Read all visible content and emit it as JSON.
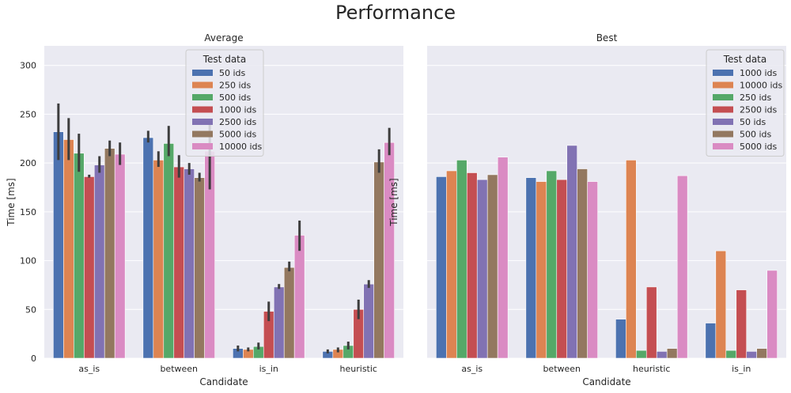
{
  "figure": {
    "title": "Performance"
  },
  "chart_data": [
    {
      "type": "bar",
      "title": "Average",
      "xlabel": "Candidate",
      "ylabel": "Time [ms]",
      "ylim": [
        0,
        320
      ],
      "yticks": [
        0,
        50,
        100,
        150,
        200,
        250,
        300
      ],
      "grid": true,
      "legend": {
        "title": "Test data",
        "placement": "top-center"
      },
      "categories": [
        "as_is",
        "between",
        "is_in",
        "heuristic"
      ],
      "series": [
        {
          "name": "50 ids",
          "color": "#4c72b0",
          "values": [
            232,
            226,
            10,
            7
          ],
          "err_low": [
            203,
            221,
            7,
            5
          ],
          "err_high": [
            261,
            233,
            13,
            9
          ]
        },
        {
          "name": "250 ids",
          "color": "#dd8452",
          "values": [
            224,
            203,
            9,
            9
          ],
          "err_low": [
            203,
            196,
            7,
            6
          ],
          "err_high": [
            246,
            212,
            11,
            11
          ]
        },
        {
          "name": "500 ids",
          "color": "#55a868",
          "values": [
            210,
            220,
            12,
            13
          ],
          "err_low": [
            191,
            207,
            9,
            9
          ],
          "err_high": [
            230,
            238,
            16,
            17
          ]
        },
        {
          "name": "1000 ids",
          "color": "#c44e52",
          "values": [
            186,
            196,
            48,
            50
          ],
          "err_low": [
            185,
            185,
            38,
            40
          ],
          "err_high": [
            188,
            208,
            58,
            60
          ]
        },
        {
          "name": "2500 ids",
          "color": "#8172b3",
          "values": [
            198,
            194,
            73,
            76
          ],
          "err_low": [
            190,
            188,
            71,
            72
          ],
          "err_high": [
            207,
            200,
            76,
            80
          ]
        },
        {
          "name": "5000 ids",
          "color": "#937860",
          "values": [
            215,
            185,
            93,
            201
          ],
          "err_low": [
            207,
            181,
            89,
            190
          ],
          "err_high": [
            223,
            190,
            99,
            214
          ]
        },
        {
          "name": "10000 ids",
          "color": "#da8bc3",
          "values": [
            209,
            212,
            126,
            221
          ],
          "err_low": [
            198,
            173,
            110,
            208
          ],
          "err_high": [
            221,
            245,
            141,
            236
          ]
        }
      ]
    },
    {
      "type": "bar",
      "title": "Best",
      "xlabel": "Candidate",
      "ylabel": "Time [ms]",
      "ylim": [
        0,
        320
      ],
      "yticks": [
        0,
        50,
        100,
        150,
        200,
        250,
        300
      ],
      "grid": true,
      "legend": {
        "title": "Test data",
        "placement": "top-right"
      },
      "categories": [
        "as_is",
        "between",
        "heuristic",
        "is_in"
      ],
      "series": [
        {
          "name": "1000 ids",
          "color": "#4c72b0",
          "values": [
            186,
            185,
            40,
            36
          ]
        },
        {
          "name": "10000 ids",
          "color": "#dd8452",
          "values": [
            192,
            181,
            203,
            110
          ]
        },
        {
          "name": "250 ids",
          "color": "#55a868",
          "values": [
            203,
            192,
            8,
            8
          ]
        },
        {
          "name": "2500 ids",
          "color": "#c44e52",
          "values": [
            190,
            183,
            73,
            70
          ]
        },
        {
          "name": "50 ids",
          "color": "#8172b3",
          "values": [
            183,
            218,
            7,
            7
          ]
        },
        {
          "name": "500 ids",
          "color": "#937860",
          "values": [
            188,
            194,
            10,
            10
          ]
        },
        {
          "name": "5000 ids",
          "color": "#da8bc3",
          "values": [
            206,
            181,
            187,
            90
          ]
        }
      ]
    }
  ]
}
